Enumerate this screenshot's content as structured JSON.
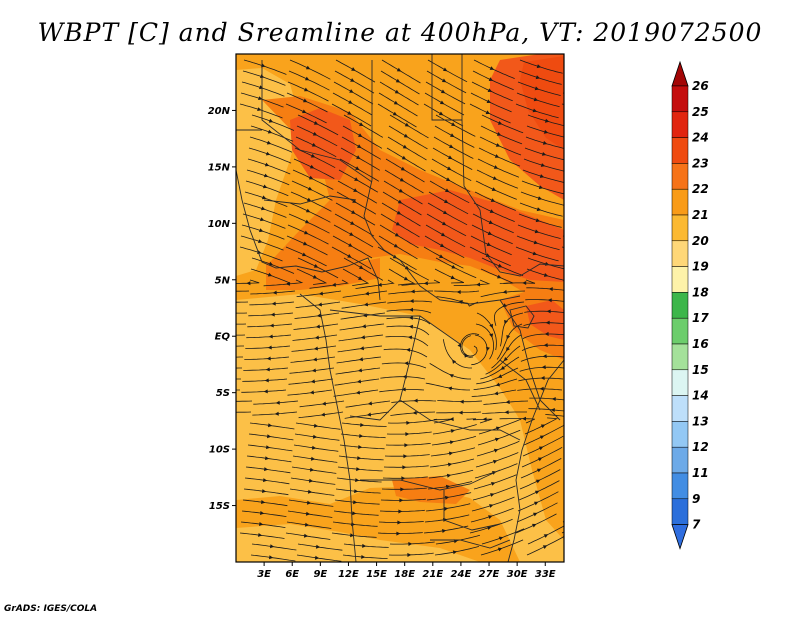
{
  "title": "WBPT [C] and Sreamline at 400hPa, VT: 2019072500",
  "credit": "GrADS: IGES/COLA",
  "map": {
    "lon_range": [
      0,
      35
    ],
    "lat_range": [
      -20,
      25
    ],
    "lon_ticks": [
      {
        "value": 3,
        "label": "3E"
      },
      {
        "value": 6,
        "label": "6E"
      },
      {
        "value": 9,
        "label": "9E"
      },
      {
        "value": 12,
        "label": "12E"
      },
      {
        "value": 15,
        "label": "15E"
      },
      {
        "value": 18,
        "label": "18E"
      },
      {
        "value": 21,
        "label": "21E"
      },
      {
        "value": 24,
        "label": "24E"
      },
      {
        "value": 27,
        "label": "27E"
      },
      {
        "value": 30,
        "label": "30E"
      },
      {
        "value": 33,
        "label": "33E"
      }
    ],
    "lat_ticks": [
      {
        "value": 20,
        "label": "20N"
      },
      {
        "value": 15,
        "label": "15N"
      },
      {
        "value": 10,
        "label": "10N"
      },
      {
        "value": 5,
        "label": "5N"
      },
      {
        "value": 0,
        "label": "EQ"
      },
      {
        "value": -5,
        "label": "5S"
      },
      {
        "value": -10,
        "label": "10S"
      },
      {
        "value": -15,
        "label": "15S"
      }
    ],
    "field_colors": {
      "c20": "#fcc047",
      "c21": "#f9a31c",
      "c22": "#f67e12",
      "c23": "#f2581a"
    }
  },
  "colorbar": {
    "levels": [
      "26",
      "25",
      "24",
      "23",
      "22",
      "21",
      "20",
      "19",
      "18",
      "17",
      "16",
      "15",
      "14",
      "13",
      "12",
      "11",
      "9",
      "7"
    ],
    "colors": [
      "#c40d0d",
      "#e1250f",
      "#ef4b10",
      "#f67318",
      "#f99b17",
      "#fbb932",
      "#fed778",
      "#fdf2a9",
      "#3cb64a",
      "#6ccd6c",
      "#a4e19a",
      "#dcf5f2",
      "#bedffa",
      "#93c8f4",
      "#6daae8",
      "#428de3",
      "#2b6fdb"
    ],
    "top_arrow_color": "#a30606",
    "bottom_arrow_color": "#2f6ee0"
  }
}
